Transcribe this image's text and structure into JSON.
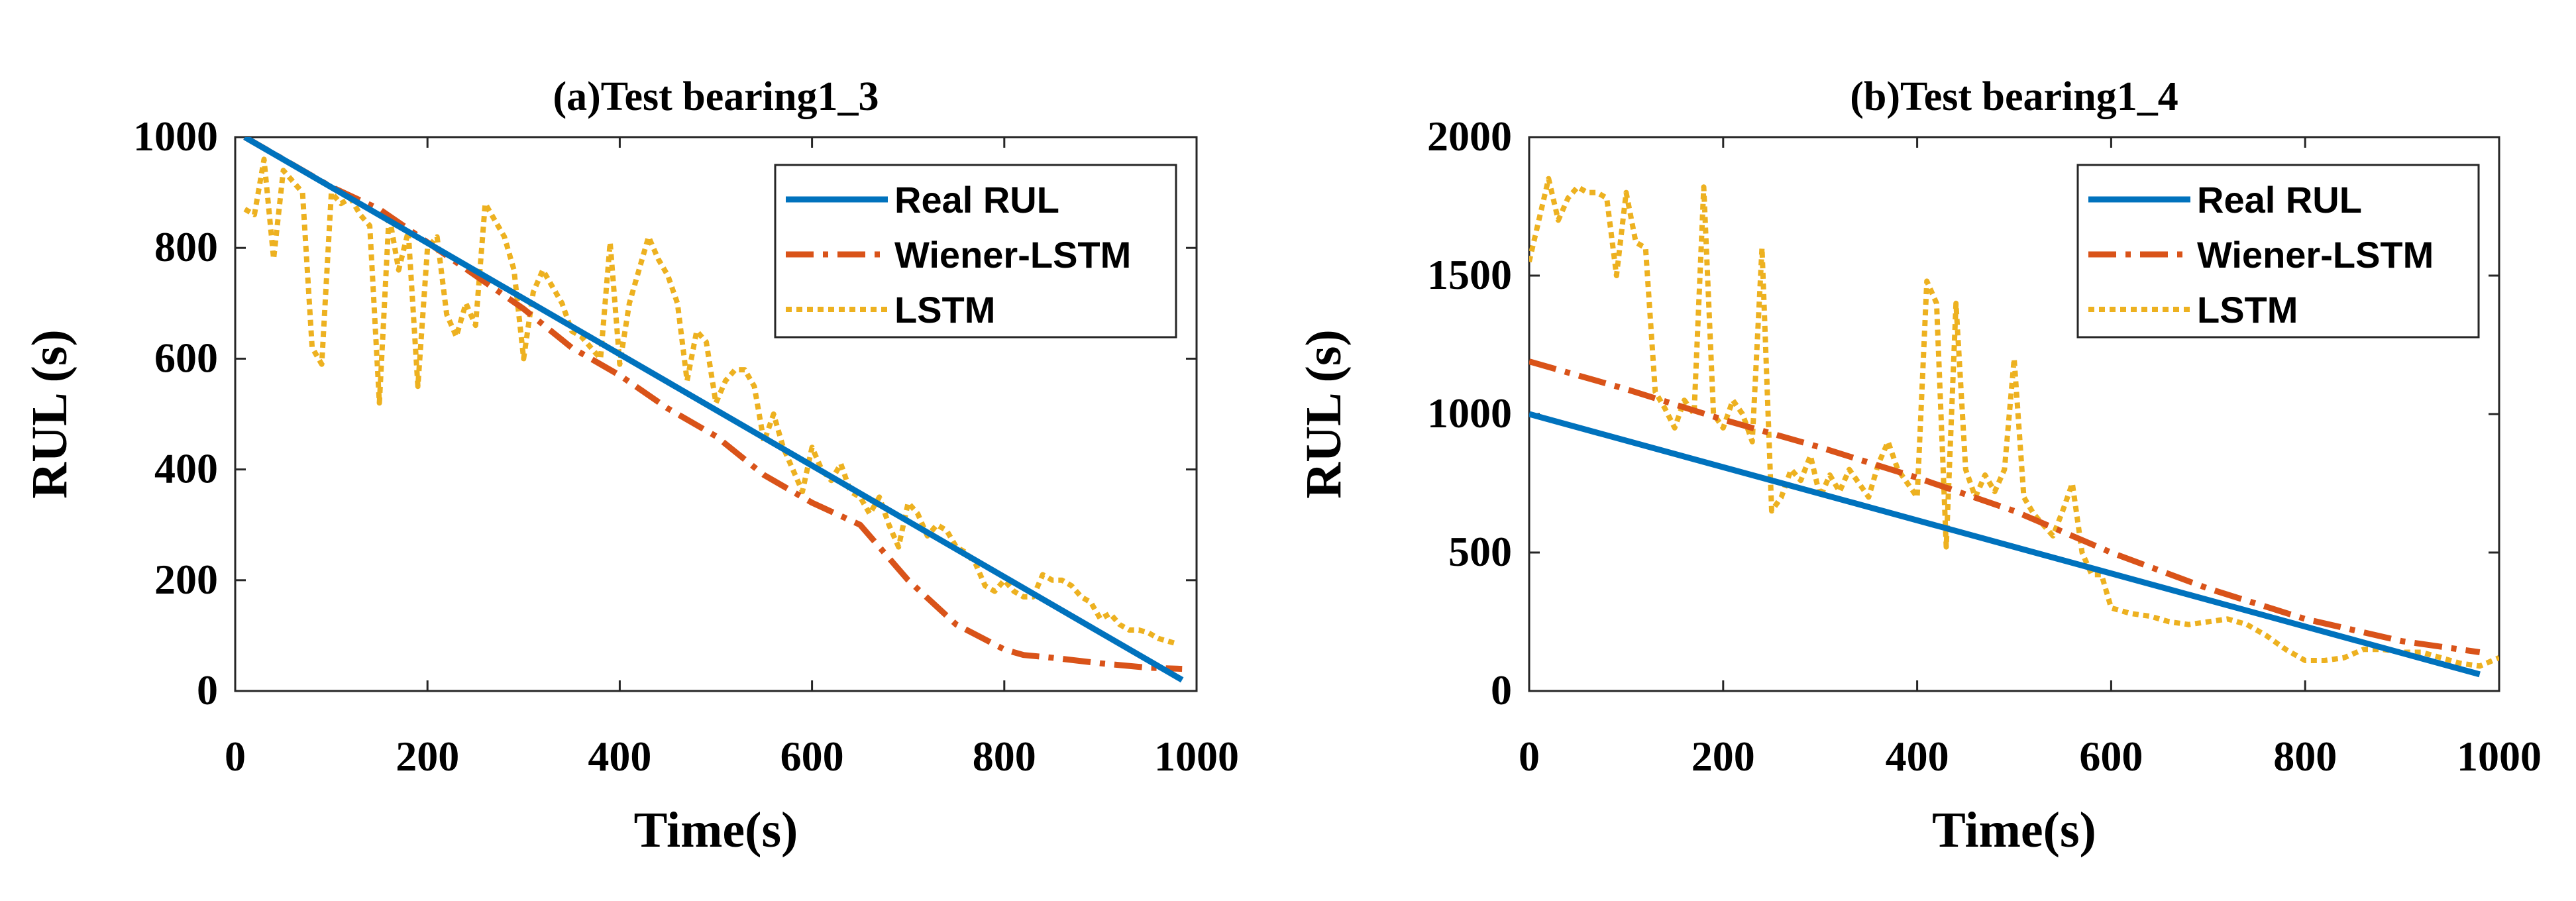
{
  "chart_data": [
    {
      "type": "line",
      "title": "(a)Test bearing1_3",
      "xlabel": "Time(s)",
      "ylabel": "RUL (s)",
      "xlim": [
        0,
        1000
      ],
      "ylim": [
        0,
        1000
      ],
      "xticks": [
        0,
        200,
        400,
        600,
        800,
        1000
      ],
      "yticks": [
        0,
        200,
        400,
        600,
        800,
        1000
      ],
      "xtick_labels": [
        "0",
        "200",
        "400",
        "600",
        "800",
        "1000"
      ],
      "ytick_labels": [
        "0",
        "200",
        "400",
        "600",
        "800",
        "1000"
      ],
      "legend_position": "top-right",
      "series": [
        {
          "name": "Real RUL",
          "color": "#0072BD",
          "style": "solid",
          "x": [
            10,
            985
          ],
          "y": [
            1000,
            20
          ]
        },
        {
          "name": "Wiener-LSTM",
          "color": "#D95319",
          "style": "dashdot",
          "x": [
            10,
            50,
            100,
            150,
            200,
            250,
            300,
            350,
            400,
            450,
            500,
            550,
            600,
            650,
            700,
            750,
            800,
            820,
            850,
            900,
            950,
            985
          ],
          "y": [
            1000,
            960,
            910,
            870,
            810,
            750,
            690,
            620,
            570,
            510,
            460,
            390,
            340,
            300,
            200,
            120,
            75,
            65,
            60,
            50,
            42,
            40
          ]
        },
        {
          "name": "LSTM",
          "color": "#EDB120",
          "style": "dotted",
          "x": [
            10,
            20,
            30,
            40,
            50,
            60,
            70,
            80,
            90,
            100,
            110,
            120,
            130,
            140,
            150,
            160,
            170,
            180,
            190,
            200,
            210,
            220,
            230,
            240,
            250,
            260,
            270,
            280,
            290,
            300,
            310,
            320,
            330,
            340,
            350,
            360,
            370,
            380,
            390,
            400,
            410,
            420,
            430,
            440,
            450,
            460,
            470,
            480,
            490,
            500,
            510,
            520,
            530,
            540,
            550,
            560,
            570,
            580,
            590,
            600,
            610,
            620,
            630,
            640,
            650,
            660,
            670,
            680,
            690,
            700,
            710,
            720,
            730,
            740,
            750,
            760,
            770,
            780,
            790,
            800,
            810,
            820,
            830,
            840,
            850,
            860,
            870,
            880,
            890,
            900,
            910,
            920,
            930,
            940,
            950,
            960,
            970,
            980
          ],
          "y": [
            870,
            860,
            960,
            780,
            940,
            920,
            900,
            620,
            590,
            900,
            880,
            890,
            860,
            840,
            520,
            860,
            760,
            830,
            550,
            800,
            820,
            680,
            640,
            700,
            660,
            880,
            850,
            820,
            760,
            600,
            720,
            760,
            730,
            700,
            650,
            640,
            620,
            600,
            810,
            590,
            700,
            760,
            820,
            780,
            750,
            700,
            560,
            650,
            630,
            520,
            560,
            580,
            580,
            550,
            450,
            500,
            440,
            400,
            360,
            440,
            400,
            380,
            410,
            360,
            350,
            320,
            350,
            300,
            260,
            340,
            320,
            280,
            300,
            290,
            260,
            250,
            230,
            190,
            180,
            200,
            180,
            170,
            170,
            210,
            200,
            200,
            190,
            170,
            160,
            130,
            140,
            120,
            110,
            110,
            105,
            95,
            90,
            85
          ]
        }
      ]
    },
    {
      "type": "line",
      "title": "(b)Test bearing1_4",
      "xlabel": "Time(s)",
      "ylabel": "RUL (s)",
      "xlim": [
        0,
        1000
      ],
      "ylim": [
        0,
        2000
      ],
      "xticks": [
        0,
        200,
        400,
        600,
        800,
        1000
      ],
      "yticks": [
        0,
        500,
        1000,
        1500,
        2000
      ],
      "xtick_labels": [
        "0",
        "200",
        "400",
        "600",
        "800",
        "1000"
      ],
      "ytick_labels": [
        "0",
        "500",
        "1000",
        "1500",
        "2000"
      ],
      "legend_position": "top-right",
      "series": [
        {
          "name": "Real RUL",
          "color": "#0072BD",
          "style": "solid",
          "x": [
            0,
            980
          ],
          "y": [
            1000,
            60
          ]
        },
        {
          "name": "Wiener-LSTM",
          "color": "#D95319",
          "style": "dashdot",
          "x": [
            0,
            100,
            200,
            300,
            400,
            500,
            600,
            700,
            800,
            900,
            980
          ],
          "y": [
            1190,
            1090,
            980,
            880,
            770,
            650,
            500,
            370,
            260,
            180,
            140
          ]
        },
        {
          "name": "LSTM",
          "color": "#EDB120",
          "style": "dotted",
          "x": [
            0,
            10,
            20,
            30,
            40,
            50,
            60,
            70,
            80,
            90,
            100,
            110,
            120,
            130,
            140,
            150,
            160,
            170,
            180,
            190,
            200,
            210,
            220,
            230,
            240,
            250,
            260,
            270,
            280,
            290,
            300,
            310,
            320,
            330,
            340,
            350,
            360,
            370,
            380,
            390,
            400,
            410,
            420,
            430,
            440,
            450,
            460,
            470,
            480,
            490,
            500,
            510,
            520,
            530,
            540,
            550,
            560,
            570,
            580,
            590,
            600,
            620,
            640,
            660,
            680,
            700,
            720,
            740,
            760,
            780,
            800,
            820,
            840,
            860,
            880,
            900,
            920,
            940,
            960,
            980,
            1000
          ],
          "y": [
            1550,
            1700,
            1850,
            1700,
            1780,
            1820,
            1800,
            1800,
            1780,
            1500,
            1800,
            1620,
            1600,
            1080,
            1020,
            950,
            1050,
            1000,
            1820,
            1000,
            950,
            1050,
            1000,
            900,
            1600,
            650,
            700,
            800,
            760,
            850,
            700,
            780,
            720,
            800,
            750,
            700,
            820,
            900,
            800,
            750,
            700,
            1480,
            1400,
            520,
            1400,
            800,
            700,
            780,
            720,
            800,
            1200,
            700,
            640,
            600,
            560,
            650,
            750,
            500,
            420,
            420,
            300,
            280,
            270,
            250,
            240,
            250,
            260,
            240,
            200,
            150,
            110,
            110,
            120,
            150,
            150,
            140,
            140,
            120,
            100,
            90,
            120
          ]
        }
      ]
    }
  ]
}
